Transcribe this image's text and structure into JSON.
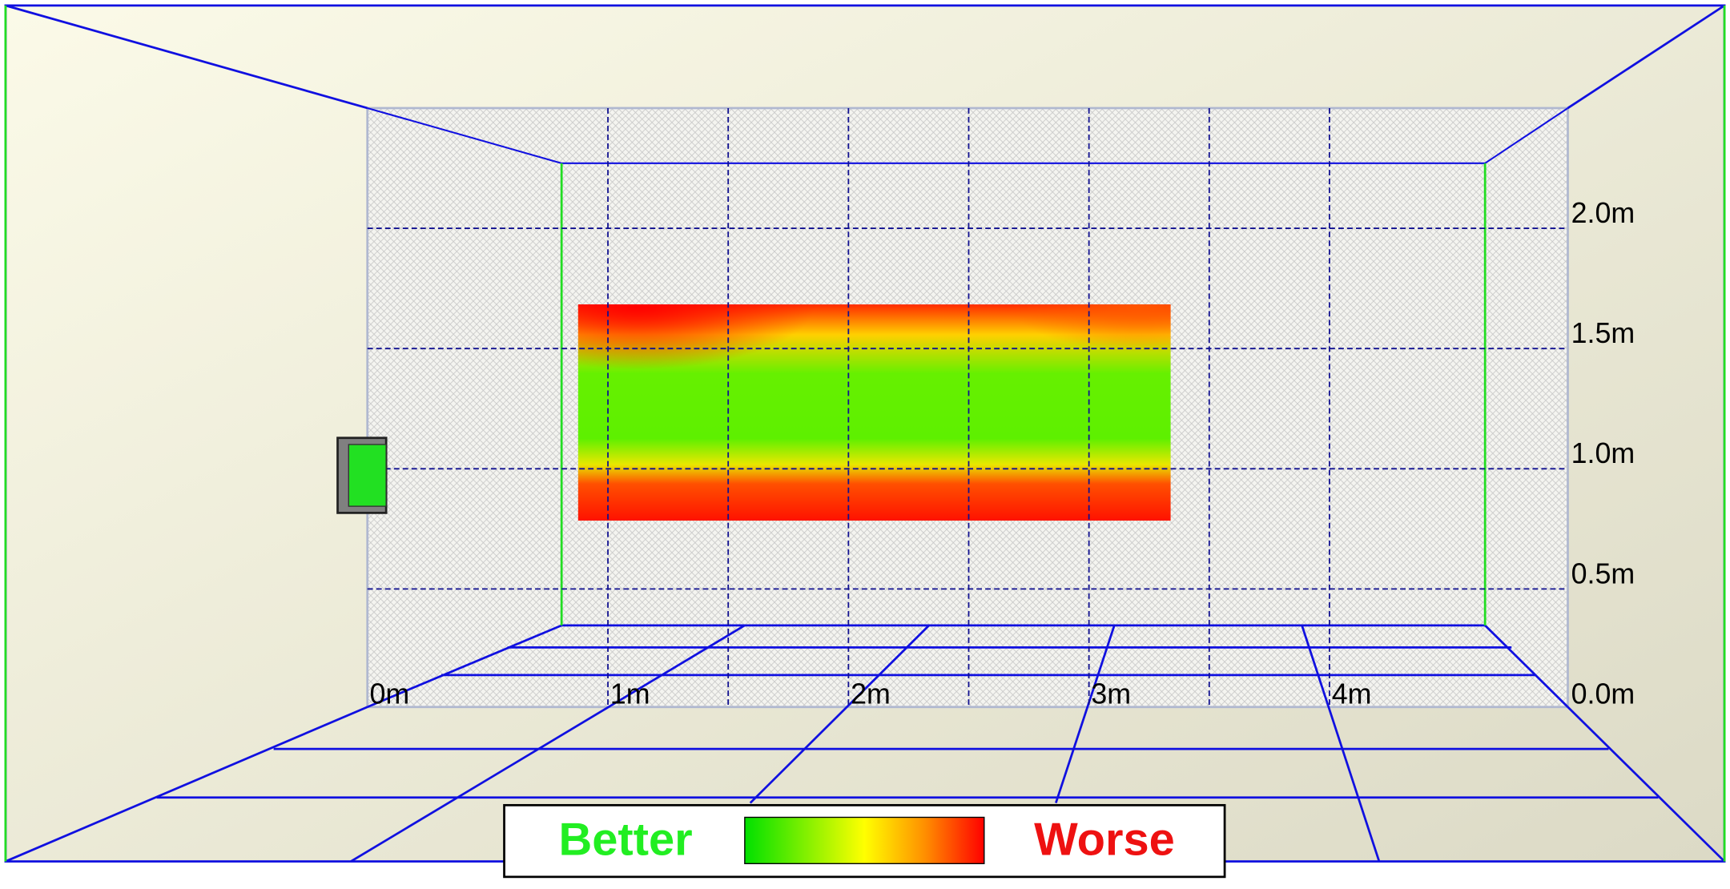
{
  "axis": {
    "x_labels": [
      "0m",
      "1m",
      "2m",
      "3m",
      "4m"
    ],
    "y_labels": [
      "0.0m",
      "0.5m",
      "1.0m",
      "1.5m",
      "2.0m"
    ]
  },
  "legend": {
    "better": "Better",
    "worse": "Worse"
  }
}
